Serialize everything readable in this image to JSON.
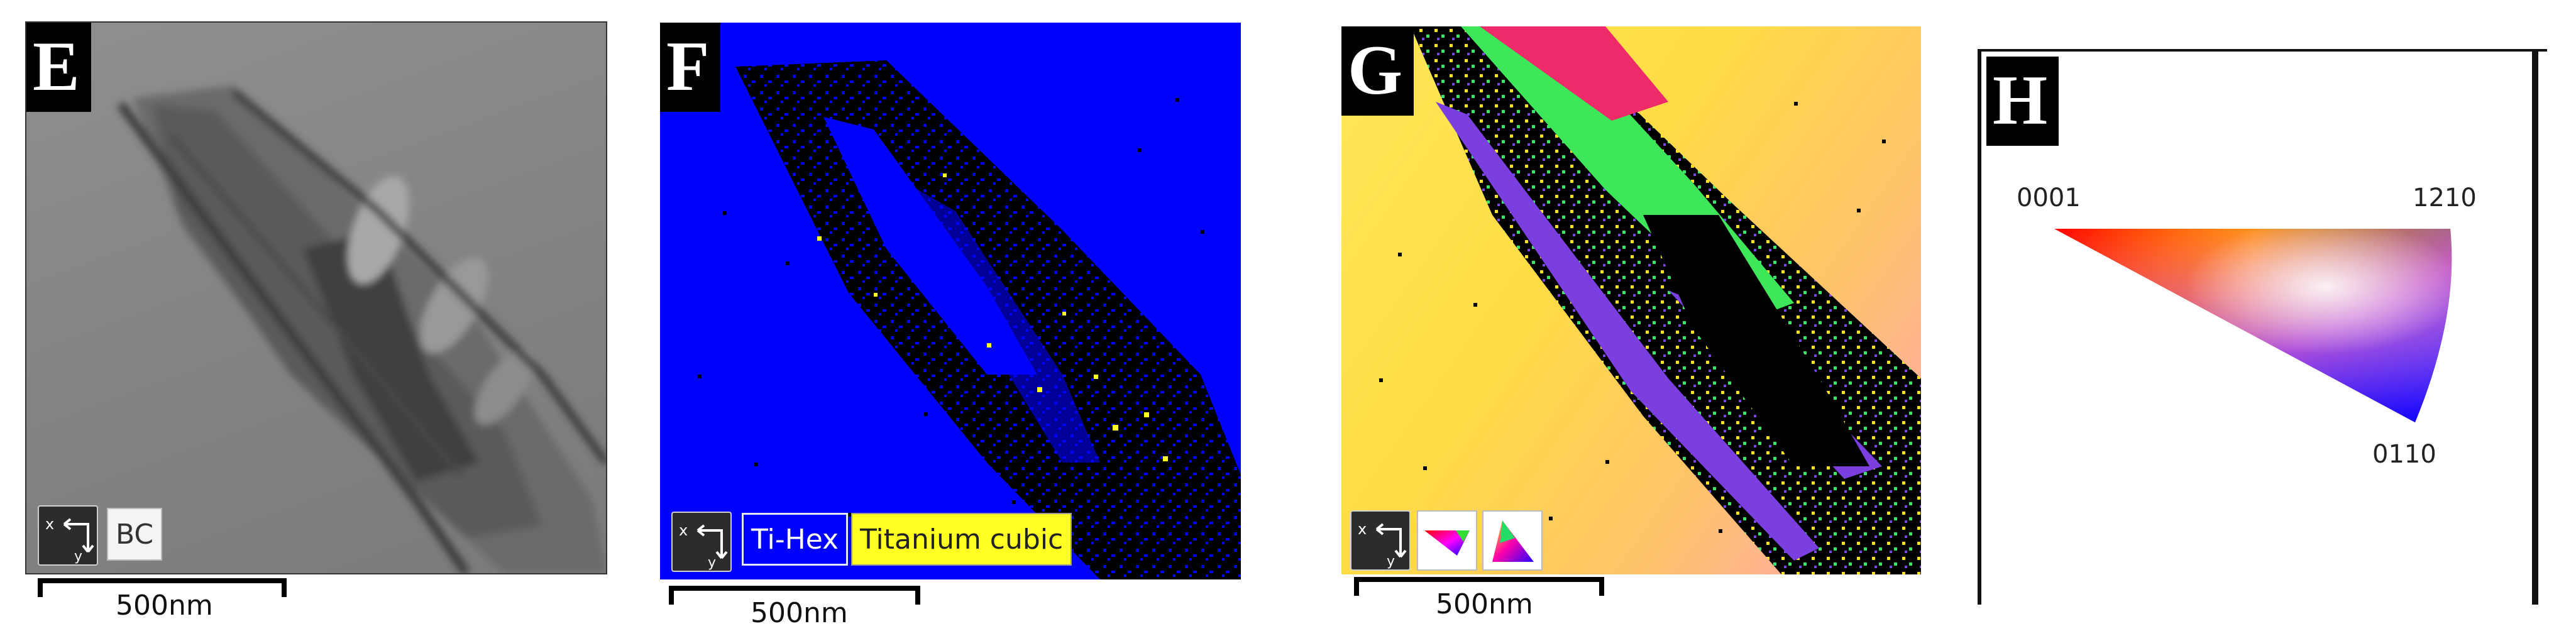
{
  "figure": {
    "panels": [
      {
        "letter": "E",
        "legend": [
          "BC"
        ],
        "scale_bar": "500nm",
        "colors": {
          "background": "#858585"
        }
      },
      {
        "letter": "F",
        "legend": [
          "Ti-Hex",
          "Titanium cubic"
        ],
        "scale_bar": "500nm",
        "colors": {
          "Ti-Hex": "#0000ff",
          "Titanium cubic": "#ffff22"
        }
      },
      {
        "letter": "G",
        "legend_icons": [
          "ipf-triangle-icon",
          "ipf-triangle-icon"
        ],
        "scale_bar": "500nm"
      },
      {
        "letter": "H",
        "ipf_key": {
          "corner_labels": {
            "left": "0001",
            "right": "1210",
            "bottom": "0110"
          },
          "corner_colors": {
            "0001": "#ff0000",
            "1210": "#00ff00",
            "0110": "#0000ff"
          }
        }
      }
    ]
  }
}
